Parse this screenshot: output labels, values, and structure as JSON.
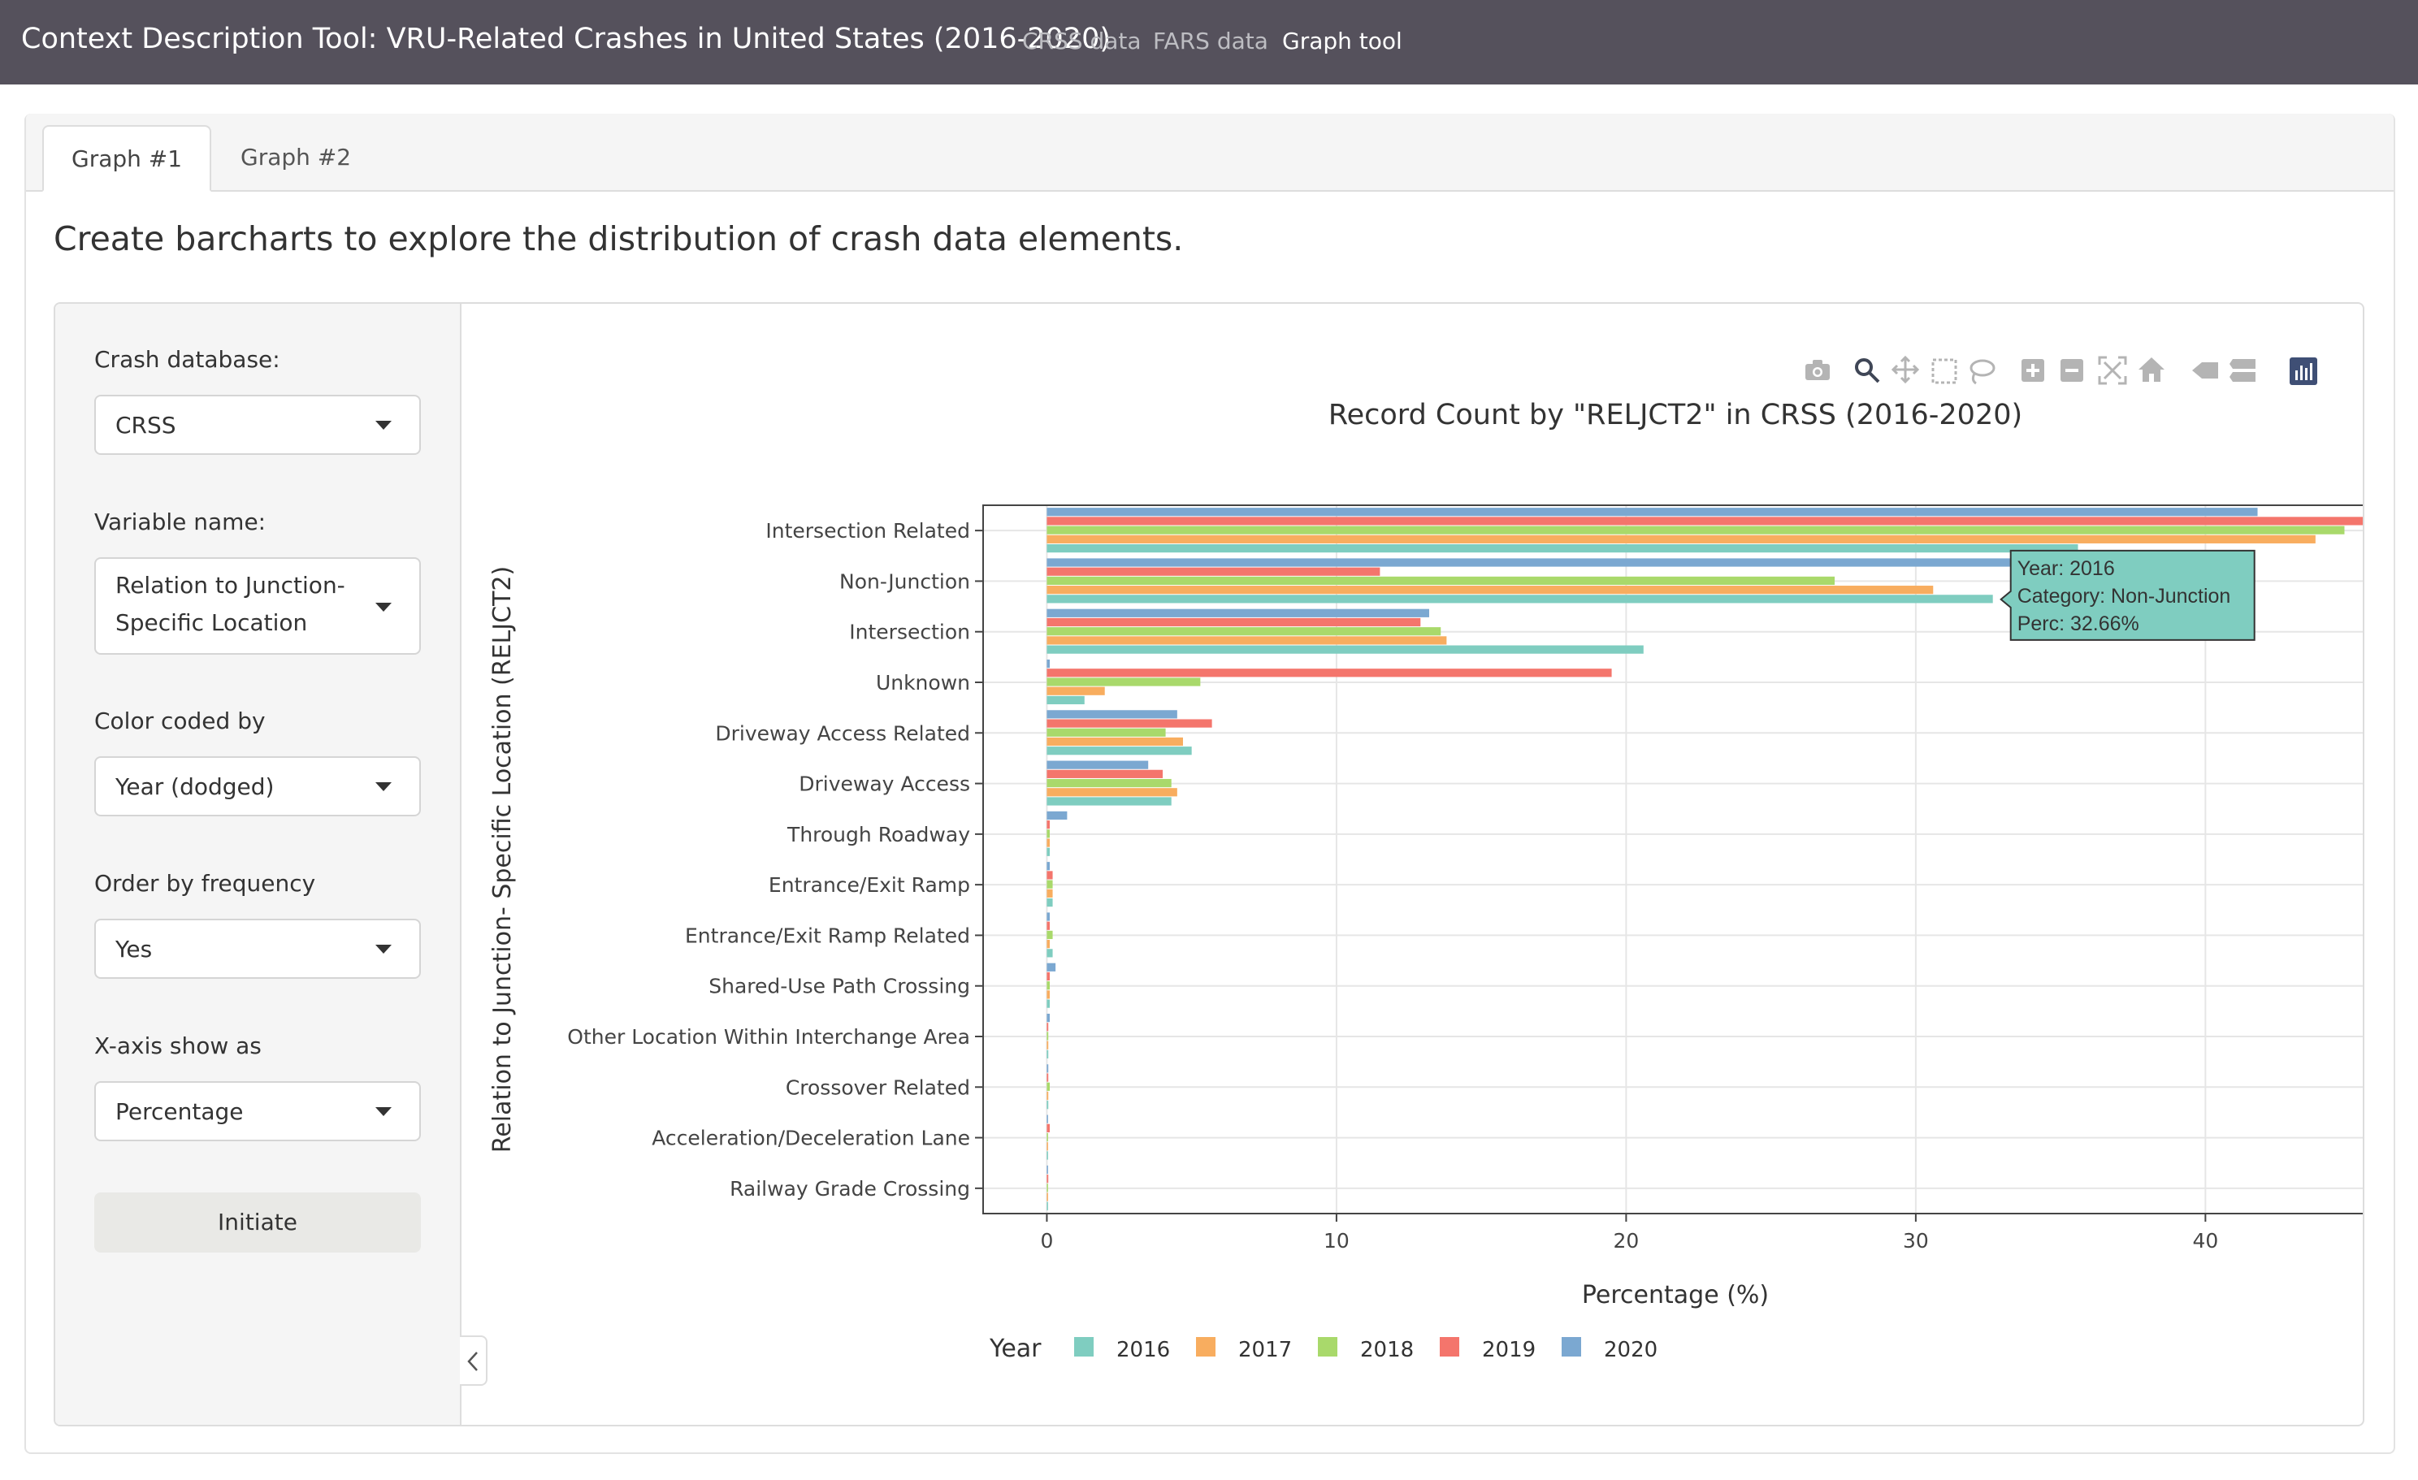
{
  "navbar": {
    "title": "Context Description Tool: VRU-Related Crashes in United States (2016-2020)",
    "links": [
      "CRSS data",
      "FARS data",
      "Graph tool"
    ]
  },
  "tabs": [
    "Graph #1",
    "Graph #2"
  ],
  "intro": "Create barcharts to explore the distribution of crash data elements.",
  "sidebar": {
    "db_label": "Crash database:",
    "db_value": "CRSS",
    "var_label": "Variable name:",
    "var_value_line1": "Relation to Junction-",
    "var_value_line2": "Specific Location",
    "color_label": "Color coded by",
    "color_value": "Year (dodged)",
    "order_label": "Order by frequency",
    "order_value": "Yes",
    "xaxis_label": "X-axis show as",
    "xaxis_value": "Percentage",
    "initiate": "Initiate"
  },
  "toolbar_icons": [
    "camera-icon",
    "zoom-icon",
    "pan-icon",
    "box-select-icon",
    "lasso-icon",
    "zoom-in-icon",
    "zoom-out-icon",
    "autoscale-icon",
    "reset-axes-icon",
    "hover-closest-icon",
    "hover-compare-icon",
    "plotly-logo-icon"
  ],
  "chart_data": {
    "type": "bar",
    "orientation": "horizontal",
    "title": "Record Count by \"RELJCT2\" in CRSS (2016-2020)",
    "xlabel": "Percentage (%)",
    "ylabel": "Relation to Junction- Specific Location (RELJCT2)",
    "xlim": [
      -2.2,
      45.6
    ],
    "xticks": [
      0,
      10,
      20,
      30,
      40
    ],
    "grid": true,
    "legend_title": "Year",
    "legend_position": "bottom",
    "categories": [
      "Intersection Related",
      "Non-Junction",
      "Intersection",
      "Unknown",
      "Driveway Access Related",
      "Driveway Access",
      "Through Roadway",
      "Entrance/Exit Ramp",
      "Entrance/Exit Ramp Related",
      "Shared-Use Path Crossing",
      "Other Location Within Interchange Area",
      "Crossover Related",
      "Acceleration/Deceleration Lane",
      "Railway Grade Crossing"
    ],
    "series": [
      {
        "name": "2016",
        "color": "#7fcdc0",
        "values": [
          35.6,
          32.66,
          20.6,
          1.3,
          5.0,
          4.3,
          0.1,
          0.2,
          0.2,
          0.1,
          0.05,
          0.05,
          0.02,
          0.02
        ]
      },
      {
        "name": "2017",
        "color": "#f8ad5f",
        "values": [
          43.8,
          30.6,
          13.8,
          2.0,
          4.7,
          4.5,
          0.1,
          0.2,
          0.1,
          0.1,
          0.05,
          0.05,
          0.02,
          0.02
        ]
      },
      {
        "name": "2018",
        "color": "#a9d96b",
        "values": [
          44.8,
          27.2,
          13.6,
          5.3,
          4.1,
          4.3,
          0.1,
          0.2,
          0.2,
          0.1,
          0.05,
          0.1,
          0.02,
          0.02
        ]
      },
      {
        "name": "2019",
        "color": "#f4756c",
        "values": [
          45.5,
          11.5,
          12.9,
          19.5,
          5.7,
          4.0,
          0.1,
          0.2,
          0.1,
          0.1,
          0.05,
          0.05,
          0.1,
          0.05
        ]
      },
      {
        "name": "2020",
        "color": "#7ba8d1",
        "values": [
          41.8,
          35.8,
          13.2,
          0.1,
          4.5,
          3.5,
          0.7,
          0.1,
          0.1,
          0.3,
          0.1,
          0.05,
          0.02,
          0.02
        ]
      }
    ],
    "tooltip": {
      "line1": "Year: 2016",
      "line2": "Category: Non-Junction",
      "line3": "Perc: 32.66%",
      "color": "#7fcdc0"
    }
  }
}
